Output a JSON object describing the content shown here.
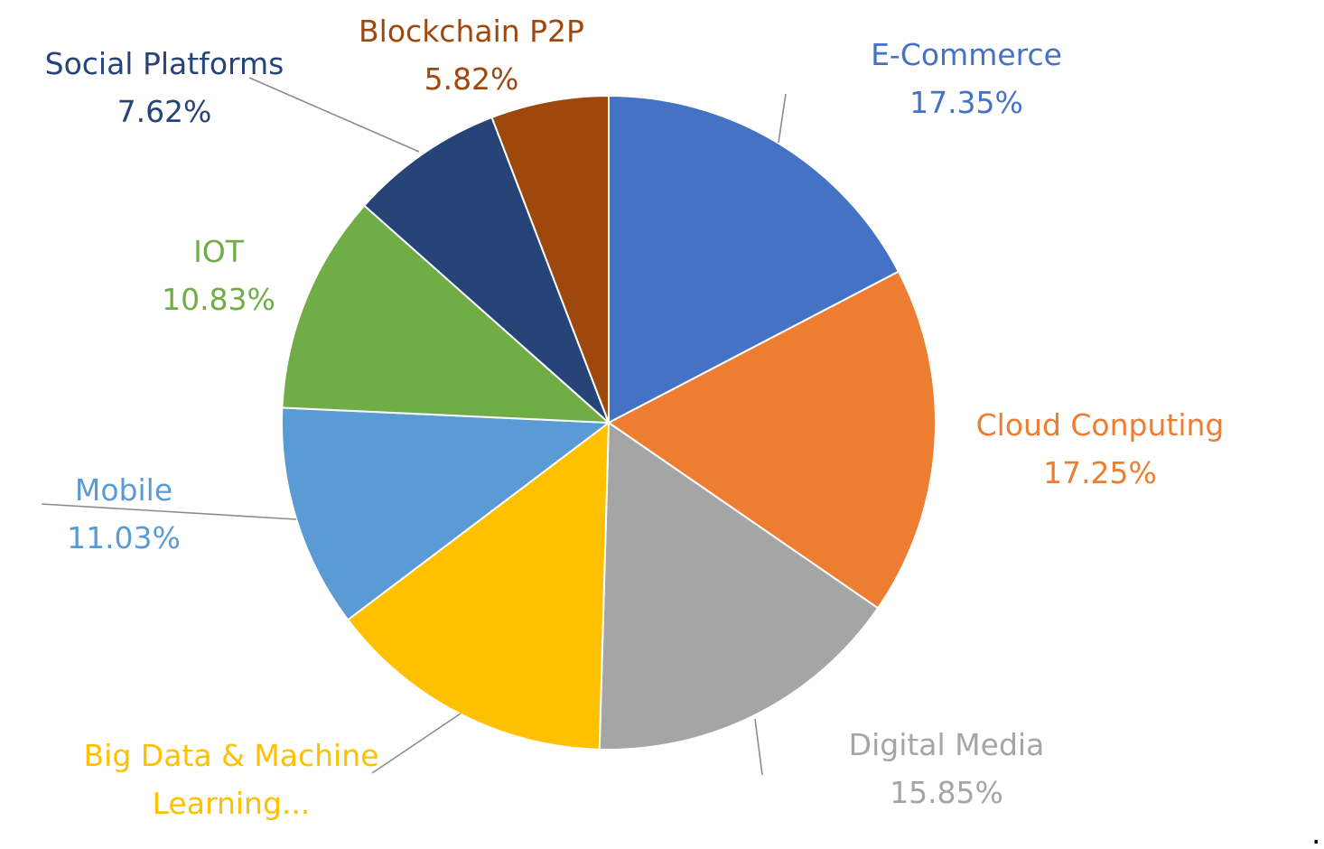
{
  "chart_data": {
    "type": "pie",
    "title": "",
    "legend": "none",
    "slices": [
      {
        "label": "E-Commerce",
        "value": 17.35,
        "value_label": "17.35%",
        "color": "#4472C4",
        "text_color": "#4472C4"
      },
      {
        "label": "Cloud Conputing",
        "value": 17.25,
        "value_label": "17.25%",
        "color": "#ED7D31",
        "text_color": "#ED7D31"
      },
      {
        "label": "Digital Media",
        "value": 15.85,
        "value_label": "15.85%",
        "color": "#A5A5A5",
        "text_color": "#A5A5A5"
      },
      {
        "label": "Big Data & Machine Learning...",
        "value": 14.25,
        "value_label": "",
        "color": "#FFC000",
        "text_color": "#FFC000"
      },
      {
        "label": "Mobile",
        "value": 11.03,
        "value_label": "11.03%",
        "color": "#5B9BD5",
        "text_color": "#5B9BD5"
      },
      {
        "label": "IOT",
        "value": 10.83,
        "value_label": "10.83%",
        "color": "#70AD47",
        "text_color": "#70AD47"
      },
      {
        "label": "Social Platforms",
        "value": 7.62,
        "value_label": "7.62%",
        "color": "#264478",
        "text_color": "#264478"
      },
      {
        "label": "Blockchain P2P",
        "value": 5.82,
        "value_label": "5.82%",
        "color": "#9E480E",
        "text_color": "#9E480E"
      }
    ],
    "footnote": "."
  }
}
